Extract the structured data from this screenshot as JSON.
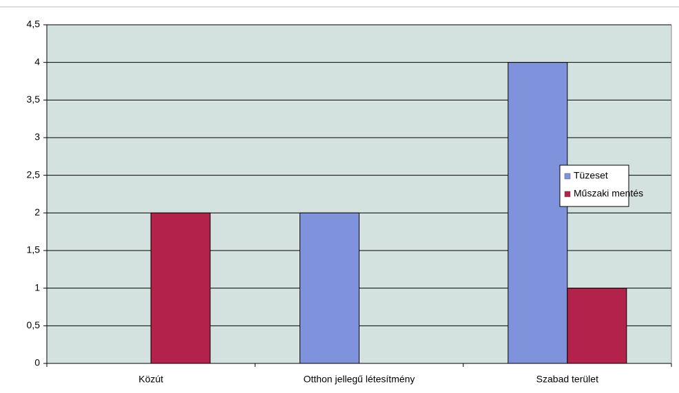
{
  "chart_data": {
    "type": "bar",
    "categories": [
      "Közút",
      "Otthon jellegű létesítmény",
      "Szabad terület"
    ],
    "series": [
      {
        "name": "Tüzeset",
        "color": "#7f93dc",
        "values": [
          0,
          2,
          4
        ]
      },
      {
        "name": "Műszaki mentés",
        "color": "#b2224a",
        "values": [
          2,
          0,
          1
        ]
      }
    ],
    "ylim": [
      0,
      4.5
    ],
    "yticks": [
      0,
      {
        "value": 0.5,
        "label": "0,5"
      },
      1,
      {
        "value": 1.5,
        "label": "1,5"
      },
      2,
      {
        "value": 2.5,
        "label": "2,5"
      },
      3,
      {
        "value": 3.5,
        "label": "3,5"
      },
      4,
      {
        "value": 4.5,
        "label": "4,5"
      }
    ],
    "grid": true,
    "legend": "right"
  }
}
